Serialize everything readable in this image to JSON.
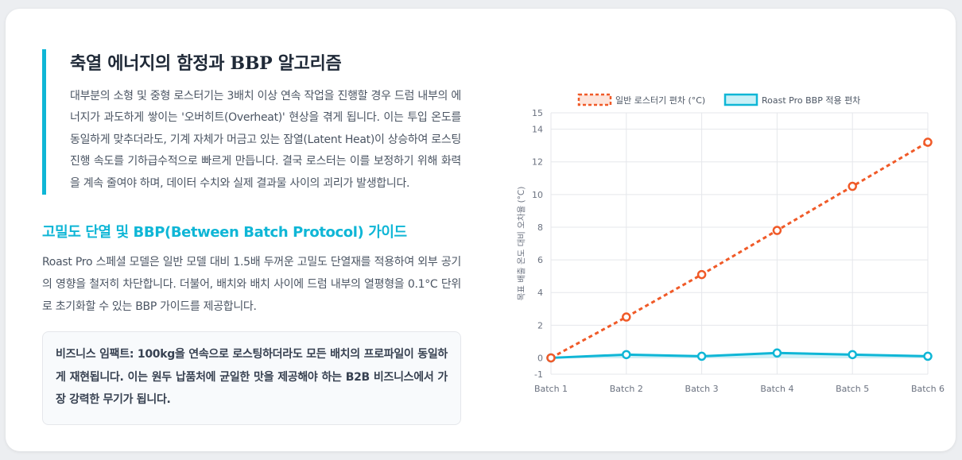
{
  "section": {
    "title": "축열 에너지의 함정과 BBP 알고리즘",
    "intro": "대부분의 소형 및 중형 로스터기는 3배치 이상 연속 작업을 진행할 경우 드럼 내부의 에너지가 과도하게 쌓이는 '오버히트(Overheat)' 현상을 겪게 됩니다. 이는 투입 온도를 동일하게 맞추더라도, 기계 자체가 머금고 있는 잠열(Latent Heat)이 상승하여 로스팅 진행 속도를 기하급수적으로 빠르게 만듭니다. 결국 로스터는 이를 보정하기 위해 화력을 계속 줄여야 하며, 데이터 수치와 실제 결과물 사이의 괴리가 발생합니다.",
    "subtitle": "고밀도 단열 및 BBP(Between Batch Protocol) 가이드",
    "body": "Roast Pro 스페셜 모델은 일반 모델 대비 1.5배 두꺼운 고밀도 단열재를 적용하여 외부 공기의 영향을 철저히 차단합니다. 더불어, 배치와 배치 사이에 드럼 내부의 열평형을 0.1°C 단위로 초기화할 수 있는 BBP 가이드를 제공합니다.",
    "impact": "비즈니스 임팩트: 100kg을 연속으로 로스팅하더라도 모든 배치의 프로파일이 동일하게 재현됩니다. 이는 원두 납품처에 균일한 맛을 제공해야 하는 B2B 비즈니스에서 가장 강력한 무기가 됩니다."
  },
  "colors": {
    "accent": "#0fb6d6",
    "series_general": "#f05a28",
    "series_pro": "#0fb6d6",
    "series_pro_fill": "#c9f0f7",
    "grid": "#e5e7eb",
    "tick": "#6b7280"
  },
  "chart_data": {
    "type": "line",
    "categories": [
      "Batch 1",
      "Batch 2",
      "Batch 3",
      "Batch 4",
      "Batch 5",
      "Batch 6"
    ],
    "series": [
      {
        "name": "일반 로스터기 편차 (°C)",
        "values": [
          0,
          2.5,
          5.1,
          7.8,
          10.5,
          13.2
        ],
        "style": "dashed"
      },
      {
        "name": "Roast Pro BBP 적용 편차",
        "values": [
          0,
          0.2,
          0.1,
          0.3,
          0.2,
          0.1
        ],
        "style": "solid-filled"
      }
    ],
    "ylabel": "목표 배출 온도 대비 오차율 (°C)",
    "xlabel": "",
    "ylim": [
      -1,
      15
    ],
    "yticks": [
      -1,
      0,
      2,
      4,
      6,
      8,
      10,
      12,
      14,
      15
    ],
    "grid": true,
    "legend": "top"
  }
}
